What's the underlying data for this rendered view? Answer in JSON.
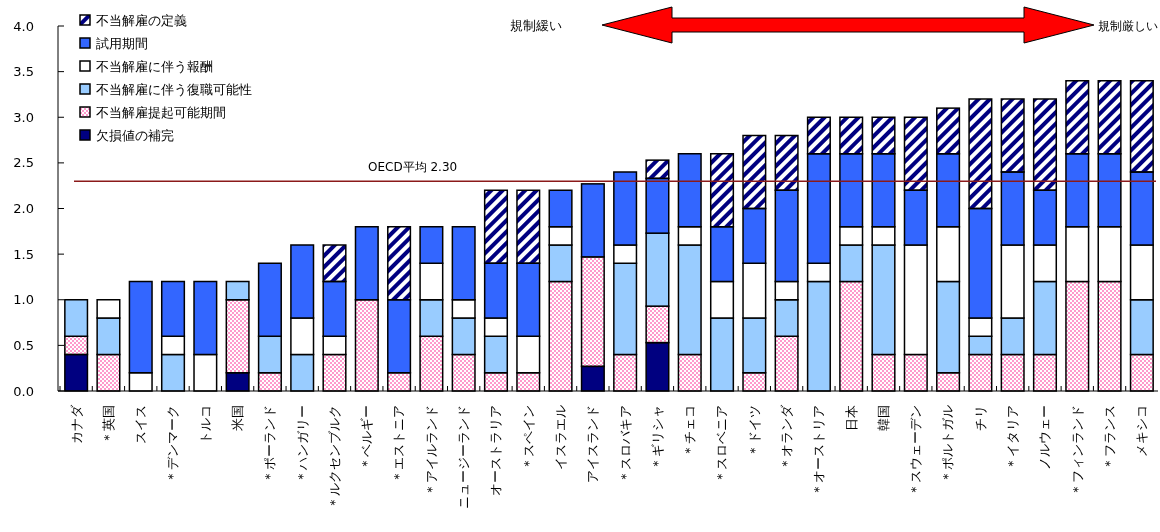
{
  "chart_data": {
    "type": "bar",
    "stacked": true,
    "categories": [
      "カナダ",
      "＊英国",
      "スイス",
      "＊デンマーク",
      "トルコ",
      "米国",
      "＊ポーランド",
      "＊ハンガリー",
      "＊ルクセンブルク",
      "＊ベルギー",
      "＊エストニア",
      "＊アイルランド",
      "ニュージーランド",
      "オーストラリア",
      "＊スペイン",
      "イスラエル",
      "アイスランド",
      "＊スロバキア",
      "＊ギリシャ",
      "＊チェコ",
      "＊スロベニア",
      "＊ドイツ",
      "＊オランダ",
      "＊オーストリア",
      "日本",
      "韓国",
      "＊スウェーデン",
      "＊ポルトガル",
      "チリ",
      "＊イタリア",
      "ノルウェー",
      "＊フィンランド",
      "＊フランス",
      "メキシコ"
    ],
    "series": [
      {
        "name": "欠損値の補完",
        "color": "#000080",
        "values": [
          0.4,
          0,
          0,
          0,
          0,
          0.2,
          0,
          0,
          0,
          0,
          0,
          0,
          0,
          0,
          0,
          0,
          0.27,
          0,
          0.53,
          0,
          0,
          0,
          0,
          0,
          0,
          0,
          0,
          0,
          0,
          0,
          0,
          0,
          0,
          0
        ]
      },
      {
        "name": "不当解雇提起可能期間",
        "color": "#ff99cc",
        "values": [
          0.2,
          0.4,
          0,
          0,
          0,
          0.8,
          0.2,
          0,
          0.4,
          1.0,
          0.2,
          0.6,
          0.4,
          0.2,
          0.2,
          1.2,
          1.2,
          0.4,
          0.4,
          0.4,
          0,
          0.2,
          0.6,
          0,
          1.2,
          0.4,
          0.4,
          0.2,
          0.4,
          0.4,
          0.4,
          1.2,
          1.2,
          0.4
        ]
      },
      {
        "name": "不当解雇に伴う復職可能性",
        "color": "#99ccff",
        "values": [
          0.4,
          0.4,
          0,
          0.4,
          0,
          0.2,
          0.4,
          0.4,
          0,
          0,
          0,
          0.4,
          0.4,
          0.4,
          0,
          0.4,
          0,
          1.0,
          0.8,
          1.2,
          0.8,
          0.6,
          0.4,
          1.2,
          0.4,
          1.2,
          0,
          1.0,
          0.2,
          0.4,
          0.8,
          0,
          0,
          0.6
        ]
      },
      {
        "name": "不当解雇に伴う報酬",
        "color": "#ffffff",
        "values": [
          0,
          0.2,
          0.2,
          0.2,
          0.4,
          0,
          0,
          0.4,
          0.2,
          0,
          0,
          0.4,
          0.2,
          0.2,
          0.4,
          0.2,
          0,
          0.2,
          0,
          0.2,
          0.4,
          0.6,
          0.2,
          0.2,
          0.2,
          0.2,
          1.2,
          0.6,
          0.2,
          0.8,
          0.4,
          0.6,
          0.6,
          0.6
        ]
      },
      {
        "name": "試用期間",
        "color": "#3366ff",
        "values": [
          0,
          0,
          1.0,
          0.6,
          0.8,
          0,
          0.8,
          0.8,
          0.6,
          0.8,
          0.8,
          0.4,
          0.8,
          0.6,
          0.8,
          0.4,
          0.8,
          0.8,
          0.6,
          0.8,
          0.6,
          0.6,
          1.0,
          1.2,
          0.8,
          0.8,
          0.6,
          0.8,
          1.2,
          0.8,
          0.6,
          0.8,
          0.8,
          0.8
        ]
      },
      {
        "name": "不当解雇の定義",
        "color": "#000080",
        "values": [
          0,
          0,
          0,
          0,
          0,
          0,
          0,
          0,
          0.4,
          0,
          0.8,
          0,
          0,
          0.8,
          0.8,
          0,
          0,
          0,
          0.2,
          0,
          0.8,
          0.8,
          0.6,
          0.4,
          0.4,
          0.4,
          0.8,
          0.5,
          1.2,
          0.8,
          1.0,
          0.8,
          0.8,
          1.0
        ]
      }
    ],
    "ylim": [
      0,
      4
    ],
    "yticks": [
      {
        "value": 0,
        "label": "0.0"
      },
      {
        "value": 0.5,
        "label": "0.5"
      },
      {
        "value": 1,
        "label": "1.0"
      },
      {
        "value": 1.5,
        "label": "1.5"
      },
      {
        "value": 2,
        "label": "2.0"
      },
      {
        "value": 2.5,
        "label": "2.5"
      },
      {
        "value": 3,
        "label": "3.0"
      },
      {
        "value": 3.5,
        "label": "3.5"
      },
      {
        "value": 4,
        "label": "4.0"
      }
    ],
    "ref_lines": [
      {
        "axis": "y",
        "value": 2.3,
        "label": "OECD平均 2.30",
        "color": "#8b1a1a"
      }
    ],
    "annotations": [
      "規制緩い",
      "規制厳しい"
    ],
    "legend": "top left",
    "grid": false
  }
}
